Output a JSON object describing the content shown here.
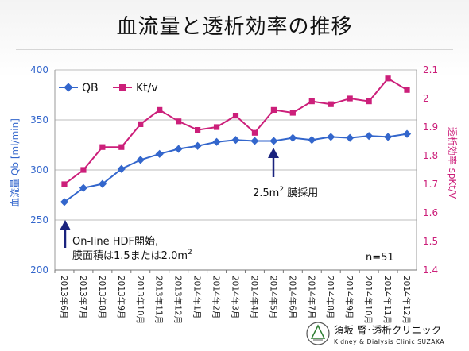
{
  "title": "血流量と透析効率の推移",
  "chart_data": {
    "type": "line",
    "categories": [
      "2013年6月",
      "2013年7月",
      "2013年8月",
      "2013年9月",
      "2013年10月",
      "2013年11月",
      "2013年12月",
      "2014年1月",
      "2014年2月",
      "2014年3月",
      "2014年4月",
      "2014年5月",
      "2014年6月",
      "2014年7月",
      "2014年8月",
      "2014年9月",
      "2014年10月",
      "2014年11月",
      "2014年12月"
    ],
    "series": [
      {
        "name": "QB",
        "axis": "left",
        "color": "#3366cc",
        "values": [
          268,
          282,
          286,
          301,
          310,
          316,
          321,
          324,
          328,
          330,
          329,
          329,
          332,
          330,
          333,
          332,
          334,
          333,
          336
        ]
      },
      {
        "name": "Kt/v",
        "axis": "right",
        "color": "#cc1f7a",
        "values": [
          1.7,
          1.75,
          1.83,
          1.83,
          1.91,
          1.96,
          1.92,
          1.89,
          1.9,
          1.94,
          1.88,
          1.96,
          1.95,
          1.99,
          1.98,
          2.0,
          1.99,
          2.07,
          2.03
        ]
      }
    ],
    "ylabel_left": "血流量 Qb [ml/min]",
    "ylabel_right": "透析効率 spKt/V",
    "ylim_left": [
      200,
      400
    ],
    "ylim_right": [
      1.4,
      2.1
    ],
    "yticks_left": [
      "200",
      "250",
      "300",
      "350",
      "400"
    ],
    "yticks_right": [
      "1.4",
      "1.5",
      "1.6",
      "1.7",
      "1.8",
      "1.9",
      "2",
      "2.1"
    ],
    "grid": "horizontal",
    "legend_position": "top-left",
    "annotations": {
      "membrane_base": "2.5m",
      "membrane_sup": "2",
      "membrane_suffix": " 膜採用",
      "hdf_line1": "On-line HDF開始,",
      "hdf_line2_base": "膜面積は1.5または2.0m",
      "hdf_line2_sup": "2",
      "n": "n=51"
    }
  },
  "logo": {
    "name_jp": "須坂 腎･透析クリニック",
    "name_en": "Kidney & Dialysis Clinic SUZAKA",
    "accent_color": "#2e7d32"
  }
}
